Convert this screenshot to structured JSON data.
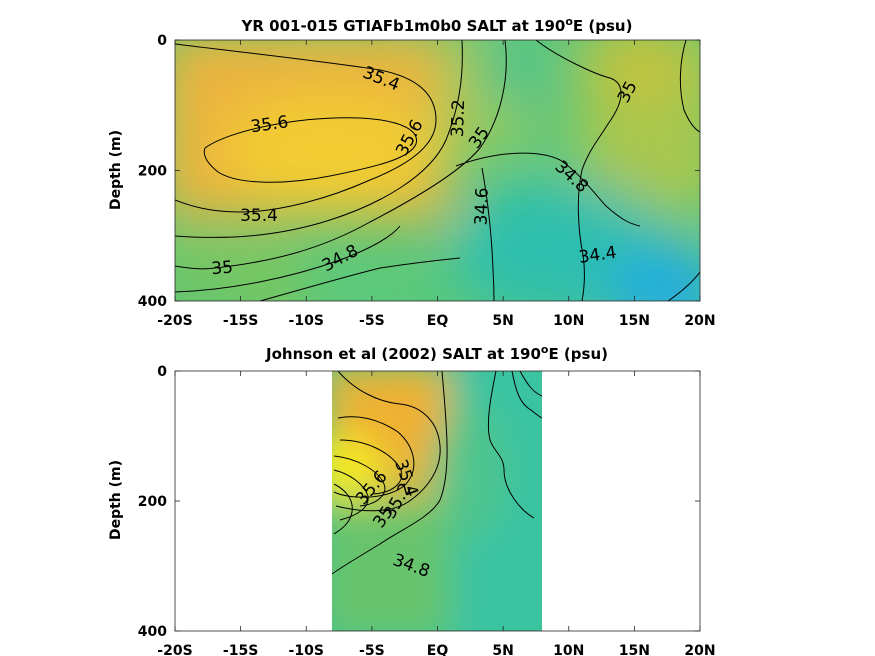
{
  "chart_data": [
    {
      "type": "contour",
      "title_text": "YR 001-015 GTIAFb1m0b0 SALT at 190",
      "title_sup": "o",
      "title_tail": "E (psu)",
      "ylabel": "Depth (m)",
      "xlim": [
        -20,
        20
      ],
      "ylim": [
        400,
        0
      ],
      "y_reversed": true,
      "x_ticks": [
        -20,
        -15,
        -10,
        -5,
        0,
        5,
        10,
        15,
        20
      ],
      "x_tick_labels": [
        "-20S",
        "-15S",
        "-10S",
        "-5S",
        "EQ",
        "5N",
        "10N",
        "15N",
        "20N"
      ],
      "y_ticks": [
        0,
        200,
        400
      ],
      "y_tick_labels": [
        "0",
        "200",
        "400"
      ],
      "contour_labels": [
        {
          "text": "35.4",
          "x": -4.3,
          "y": 60,
          "rot": 22
        },
        {
          "text": "35.6",
          "x": -12.8,
          "y": 130,
          "rot": -8
        },
        {
          "text": "35.6",
          "x": -2.1,
          "y": 150,
          "rot": -62
        },
        {
          "text": "35.2",
          "x": 1.6,
          "y": 120,
          "rot": -88
        },
        {
          "text": "35",
          "x": 3.2,
          "y": 150,
          "rot": -55
        },
        {
          "text": "35",
          "x": 14.5,
          "y": 80,
          "rot": -62
        },
        {
          "text": "34.8",
          "x": 10.2,
          "y": 210,
          "rot": 42
        },
        {
          "text": "34.6",
          "x": 3.4,
          "y": 255,
          "rot": -88
        },
        {
          "text": "35.4",
          "x": -13.6,
          "y": 270,
          "rot": 0
        },
        {
          "text": "34.8",
          "x": -7.4,
          "y": 335,
          "rot": -28
        },
        {
          "text": "34.4",
          "x": 12.2,
          "y": 330,
          "rot": -8
        },
        {
          "text": "35",
          "x": -16.4,
          "y": 350,
          "rot": -5
        }
      ]
    },
    {
      "type": "contour",
      "title_text": "Johnson et al (2002) SALT at 190",
      "title_sup": "o",
      "title_tail": "E (psu)",
      "ylabel": "Depth (m)",
      "xlim": [
        -20,
        20
      ],
      "ylim": [
        400,
        0
      ],
      "y_reversed": true,
      "data_xrange": [
        -8,
        8
      ],
      "x_ticks": [
        -20,
        -15,
        -10,
        -5,
        0,
        5,
        10,
        15,
        20
      ],
      "x_tick_labels": [
        "-20S",
        "-15S",
        "-10S",
        "-5S",
        "EQ",
        "5N",
        "10N",
        "15N",
        "20N"
      ],
      "y_ticks": [
        0,
        200,
        400
      ],
      "y_tick_labels": [
        "0",
        "200",
        "400"
      ],
      "contour_labels": [
        {
          "text": "34.8",
          "x": -2.0,
          "y": 300,
          "rot": 20
        },
        {
          "text": "35",
          "x": -4.1,
          "y": 225,
          "rot": -55
        },
        {
          "text": "35.2",
          "x": -3.0,
          "y": 200,
          "rot": -60
        },
        {
          "text": "35.4",
          "x": -2.4,
          "y": 165,
          "rot": 70
        },
        {
          "text": "35.6",
          "x": -5.0,
          "y": 180,
          "rot": -50
        }
      ]
    }
  ],
  "colormap": {
    "stops": [
      "#1aa3e8",
      "#2cbfb0",
      "#52c67c",
      "#9cca52",
      "#d6c334",
      "#f5b630",
      "#f7e826"
    ]
  }
}
